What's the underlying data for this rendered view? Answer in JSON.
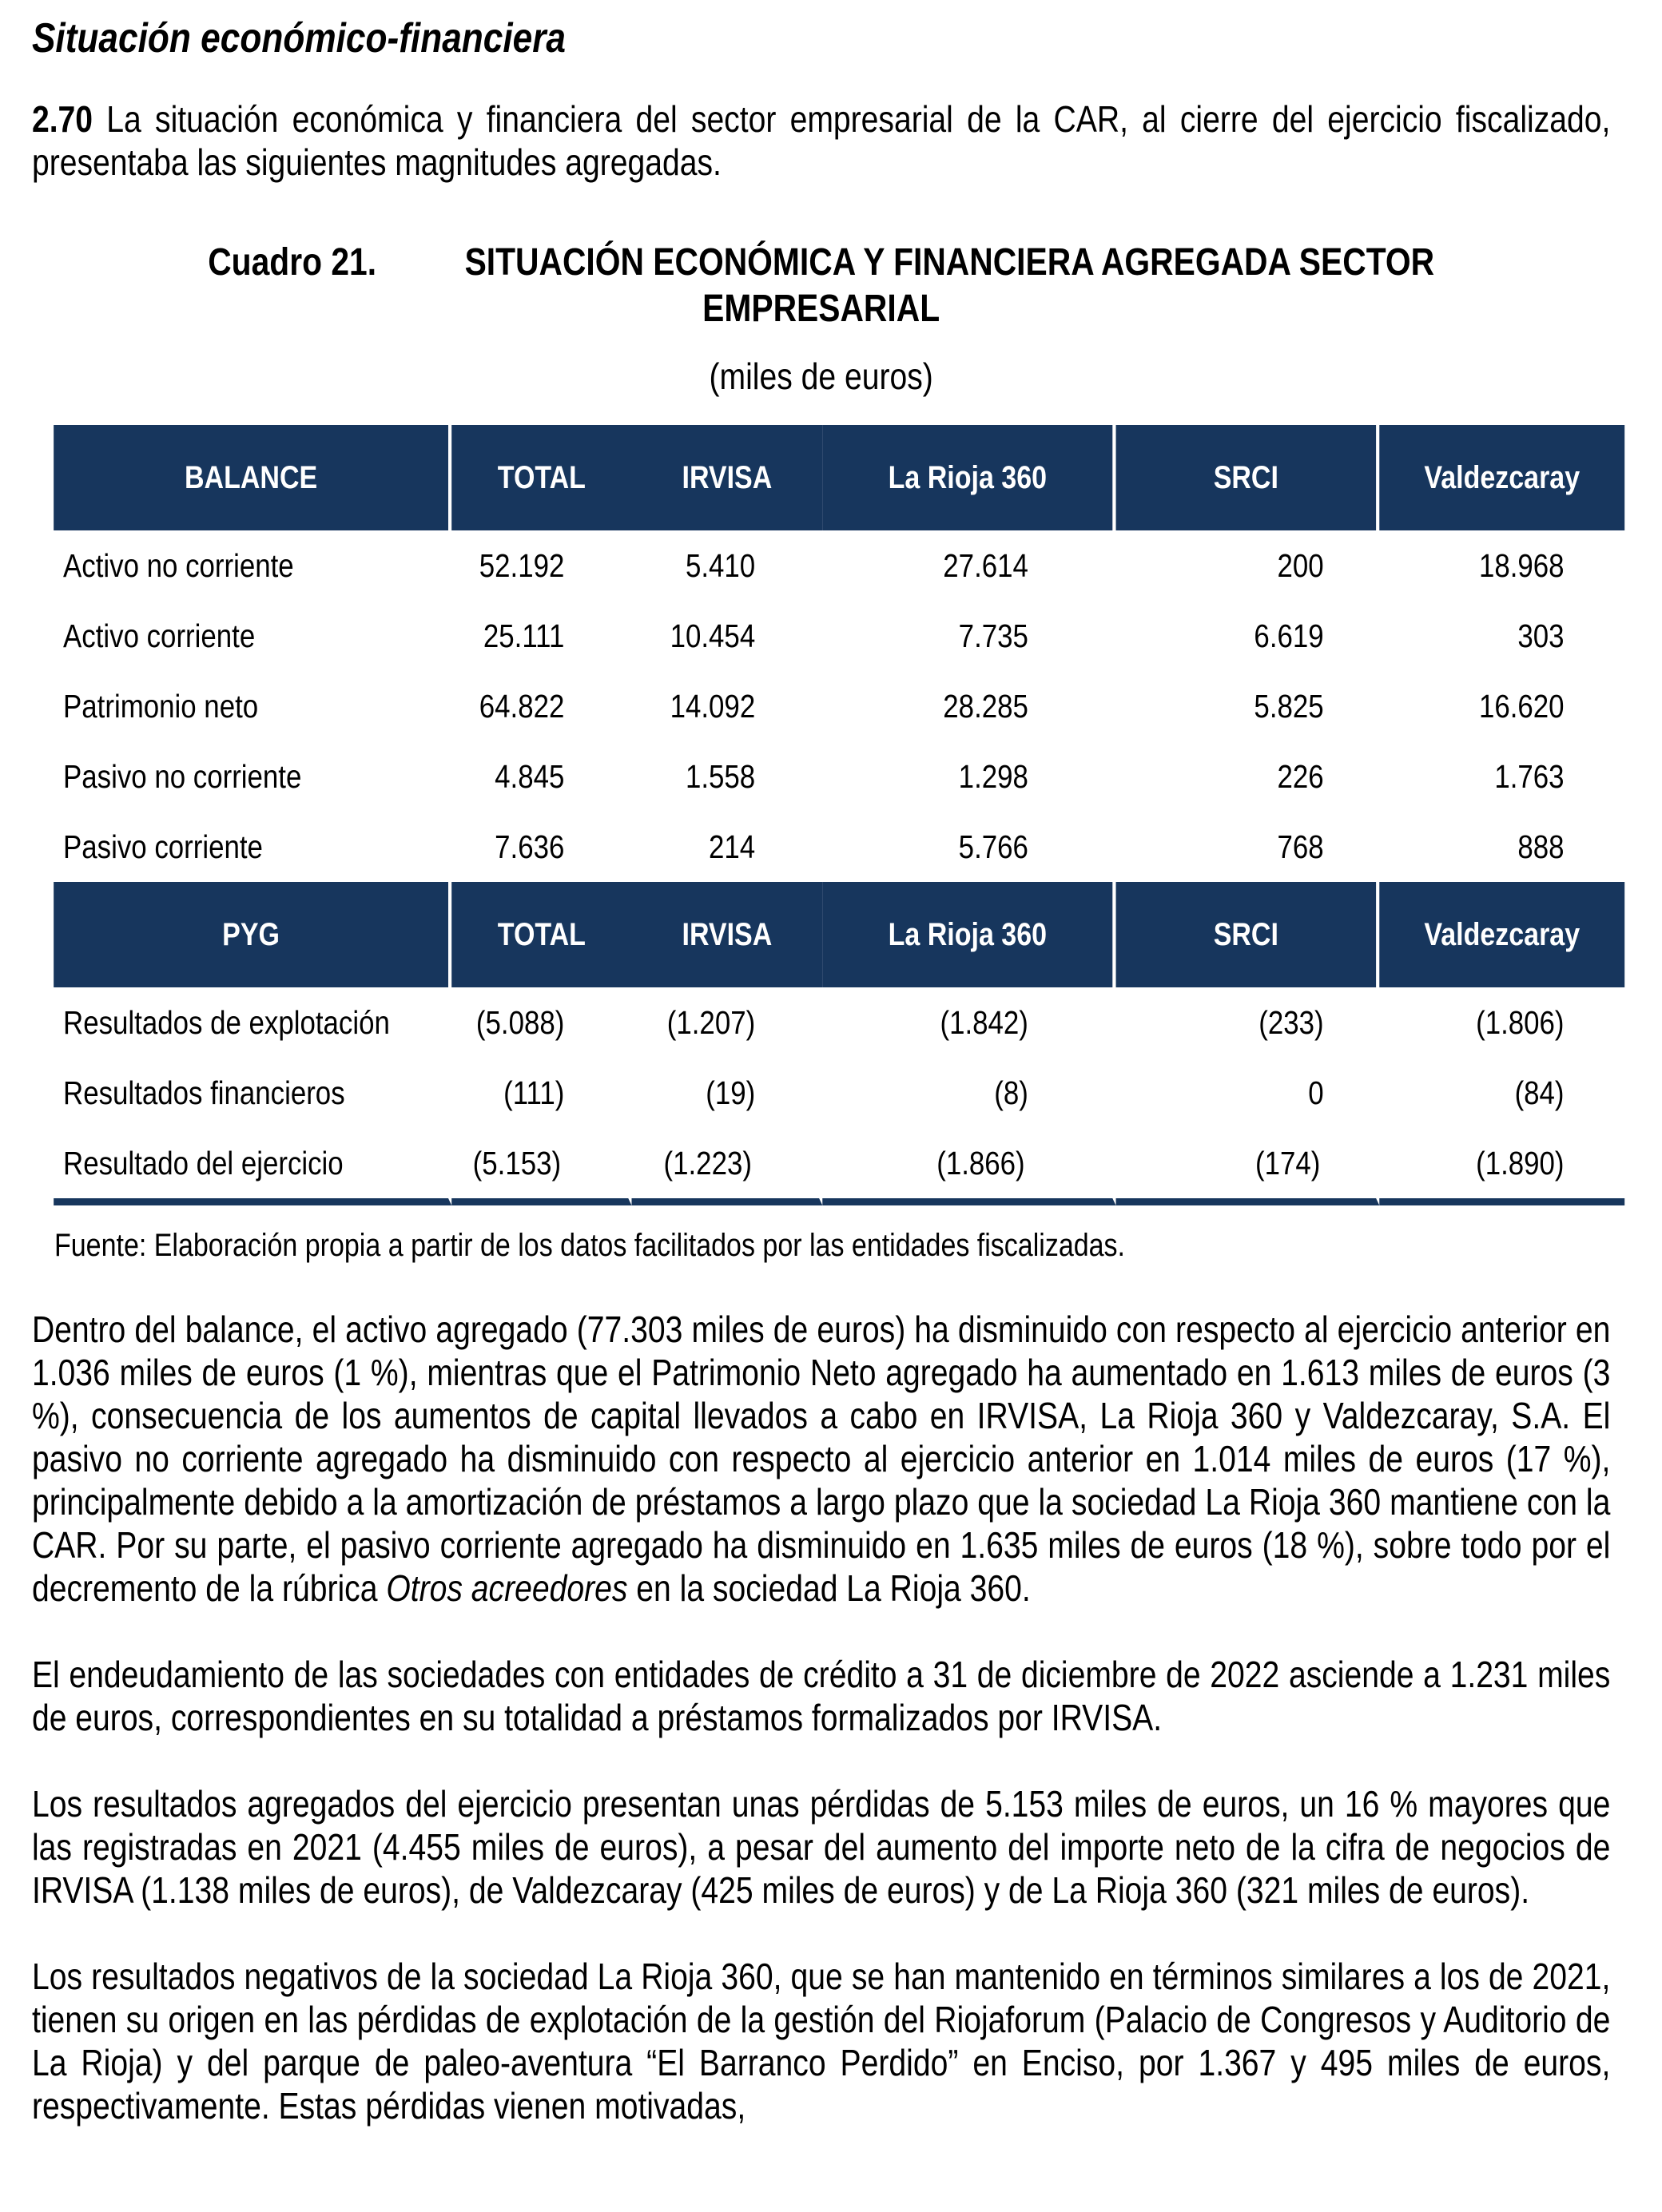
{
  "document": {
    "title": "Situación económico-financiera",
    "para_270": {
      "number": "2.70",
      "rest": " La situación económica y financiera del sector empresarial de la CAR, al cierre del ejercicio fiscalizado, presentaba las siguientes magnitudes agregadas."
    },
    "caption": {
      "label": "Cuadro 21.",
      "title_line1": "SITUACIÓN ECONÓMICA Y FINANCIERA AGREGADA SECTOR",
      "title_line2": "EMPRESARIAL",
      "units": "(miles de euros)"
    },
    "source_note": "Fuente: Elaboración propia a partir de los datos facilitados por las entidades fiscalizadas.",
    "paragraphs": {
      "balance_part1": "Dentro del balance, el activo agregado (77.303 miles de euros) ha disminuido con respecto al ejercicio anterior en 1.036 miles de euros (1 %), mientras que el Patrimonio Neto agregado ha aumentado en 1.613 miles de euros (3 %), consecuencia de los aumentos de capital llevados a cabo en IRVISA, La Rioja 360 y Valdezcaray, S.A. El pasivo no corriente agregado ha disminuido con respecto al ejercicio anterior en 1.014 miles de euros (17 %), principalmente debido a la amortización de préstamos a largo plazo que la sociedad La Rioja 360 mantiene con la CAR. Por su parte, el pasivo corriente agregado ha disminuido en 1.635 miles de euros (18 %), sobre todo por el decremento de la rúbrica ",
      "balance_italic": "Otros acreedores",
      "balance_part2": " en la sociedad La Rioja 360.",
      "debt": "El endeudamiento de las sociedades con entidades de crédito a 31 de diciembre de 2022 asciende a 1.231 miles de euros, correspondientes en su totalidad a préstamos formalizados por IRVISA.",
      "results": "Los resultados agregados del ejercicio presentan unas pérdidas de 5.153 miles de euros, un 16 % mayores que las registradas en 2021 (4.455 miles de euros), a pesar del aumento del importe neto de la cifra de negocios de IRVISA (1.138 miles de euros), de Valdezcaray (425 miles de euros) y de La Rioja 360 (321 miles de euros).",
      "negative_results": "Los resultados negativos de la sociedad La Rioja 360, que se han mantenido en términos similares a los de 2021, tienen su origen en las pérdidas de explotación de la gestión del Riojaforum (Palacio de Congresos y Auditorio de La Rioja) y del parque de paleo-aventura “El Barranco Perdido” en Enciso, por 1.367 y 495 miles de euros, respectivamente. Estas pérdidas vienen motivadas,"
    }
  },
  "table": {
    "colors": {
      "header_bg": "#17365D",
      "header_text": "#FFFFFF",
      "bottom_border": "#17365D"
    },
    "balance_section": {
      "headers": [
        "BALANCE",
        "TOTAL",
        "IRVISA",
        "La Rioja 360",
        "SRCI",
        "Valdezcaray"
      ],
      "rows": [
        {
          "label": "Activo no corriente",
          "values": [
            "52.192",
            "5.410",
            "27.614",
            "200",
            "18.968"
          ]
        },
        {
          "label": "Activo corriente",
          "values": [
            "25.111",
            "10.454",
            "7.735",
            "6.619",
            "303"
          ]
        },
        {
          "label": "Patrimonio neto",
          "values": [
            "64.822",
            "14.092",
            "28.285",
            "5.825",
            "16.620"
          ]
        },
        {
          "label": "Pasivo no corriente",
          "values": [
            "4.845",
            "1.558",
            "1.298",
            "226",
            "1.763"
          ]
        },
        {
          "label": "Pasivo corriente",
          "values": [
            "7.636",
            "214",
            "5.766",
            "768",
            "888"
          ]
        }
      ]
    },
    "pyg_section": {
      "headers": [
        "PYG",
        "TOTAL",
        "IRVISA",
        "La Rioja 360",
        "SRCI",
        "Valdezcaray"
      ],
      "rows": [
        {
          "label": "Resultados de explotación",
          "values": [
            "(5.088)",
            "(1.207)",
            "(1.842)",
            "(233)",
            "(1.806)"
          ]
        },
        {
          "label": "Resultados financieros",
          "values": [
            "(111)",
            "(19)",
            "(8)",
            "0",
            "(84)"
          ]
        },
        {
          "label": "Resultado del ejercicio",
          "values": [
            "(5.153)",
            "(1.223)",
            "(1.866)",
            "(174)",
            "(1.890)"
          ]
        }
      ]
    }
  }
}
